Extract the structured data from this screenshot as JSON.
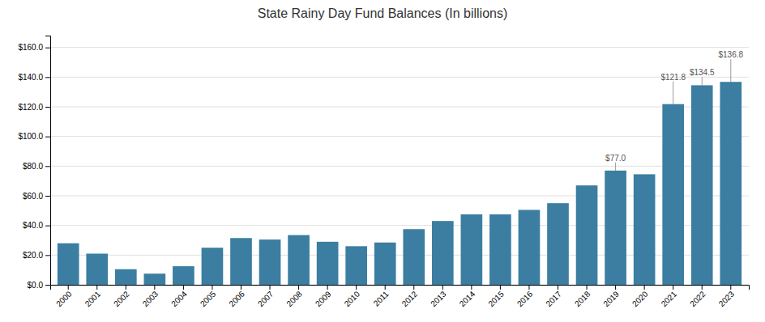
{
  "chart_data": {
    "type": "bar",
    "title": "State Rainy Day Fund Balances (In billions)",
    "categories": [
      "2000",
      "2001",
      "2002",
      "2003",
      "2004",
      "2005",
      "2006",
      "2007",
      "2008",
      "2009",
      "2010",
      "2011",
      "2012",
      "2013",
      "2014",
      "2015",
      "2016",
      "2017",
      "2018",
      "2019",
      "2020",
      "2021",
      "2022",
      "2023"
    ],
    "values": [
      28.0,
      21.0,
      10.5,
      7.5,
      12.5,
      25.0,
      31.5,
      30.5,
      33.5,
      29.0,
      26.0,
      28.5,
      37.5,
      43.0,
      47.5,
      47.5,
      50.5,
      55.0,
      67.0,
      77.0,
      74.5,
      121.8,
      134.5,
      136.8
    ],
    "color": "#3b7ea1",
    "ylim": [
      0,
      168
    ],
    "yticks": [
      {
        "value": 0,
        "label": "$0.0"
      },
      {
        "value": 20,
        "label": "$20.0"
      },
      {
        "value": 40,
        "label": "$40.0"
      },
      {
        "value": 60,
        "label": "$60.0"
      },
      {
        "value": 80,
        "label": "$80.0"
      },
      {
        "value": 100,
        "label": "$100.0"
      },
      {
        "value": 120,
        "label": "$120.0"
      },
      {
        "value": 140,
        "label": "$140.0"
      },
      {
        "value": 160,
        "label": "$160.0"
      }
    ],
    "grid": true,
    "annotations": [
      {
        "label": "$77.0",
        "category": "2019",
        "value": 77.0
      },
      {
        "label": "$121.8",
        "category": "2021",
        "value": 121.8
      },
      {
        "label": "$134.5",
        "category": "2022",
        "value": 134.5
      },
      {
        "label": "$136.8",
        "category": "2023",
        "value": 136.8
      }
    ]
  }
}
